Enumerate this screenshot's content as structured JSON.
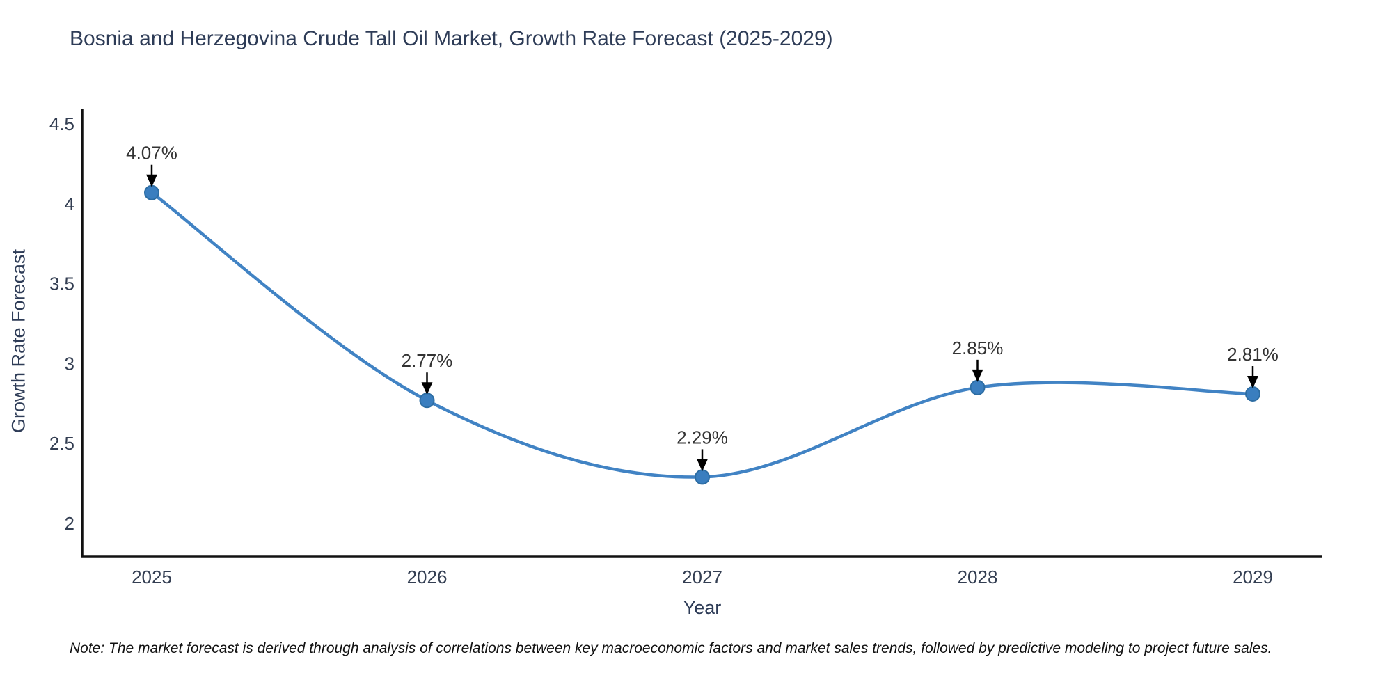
{
  "chart": {
    "title": "Bosnia and Herzegovina Crude Tall Oil Market, Growth Rate Forecast (2025-2029)",
    "xlabel": "Year",
    "ylabel": "Growth Rate Forecast",
    "note": "Note: The market forecast is derived through analysis of correlations between key macroeconomic factors and market sales trends, followed by predictive modeling to project future sales."
  },
  "chart_data": {
    "type": "line",
    "line_shape": "spline",
    "categories": [
      "2025",
      "2026",
      "2027",
      "2028",
      "2029"
    ],
    "values": [
      4.07,
      2.77,
      2.29,
      2.85,
      2.81
    ],
    "point_labels": [
      "4.07%",
      "2.77%",
      "2.29%",
      "2.85%",
      "2.81%"
    ],
    "title": "Bosnia and Herzegovina Crude Tall Oil Market, Growth Rate Forecast (2025-2029)",
    "xlabel": "Year",
    "ylabel": "Growth Rate Forecast",
    "yticks": [
      2,
      2.5,
      3,
      3.5,
      4,
      4.5
    ],
    "ylim": [
      1.79,
      4.6
    ],
    "grid": false,
    "legend": "none",
    "annotations_have_arrows": true,
    "colors": {
      "line": "#4183c4",
      "marker_fill": "#3a7ebf",
      "marker_edge": "#2d6da3",
      "axis": "#111111",
      "tick_text": "#333e52",
      "annotation_text": "#333333",
      "arrow": "#000000",
      "background": "#ffffff"
    }
  }
}
